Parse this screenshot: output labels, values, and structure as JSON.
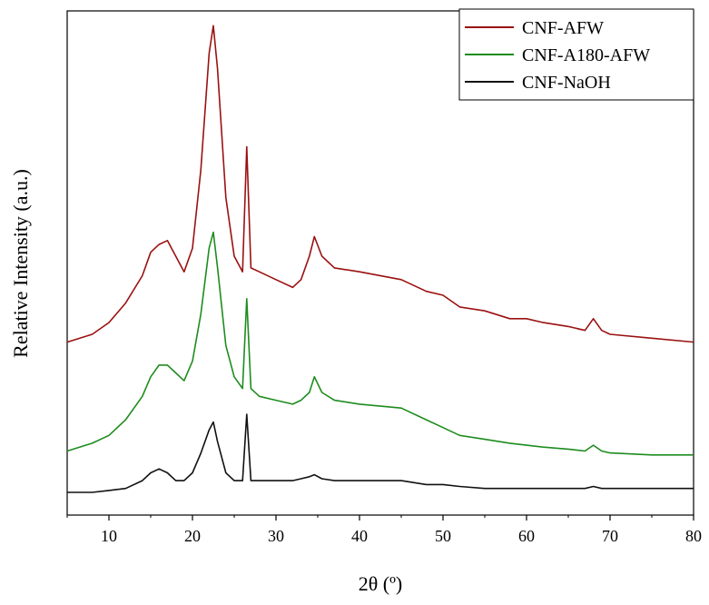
{
  "chart_data": {
    "type": "line",
    "xlabel": "2θ (º)",
    "ylabel": "Relative Intensity (a.u.)",
    "xlim": [
      5,
      80
    ],
    "xticks": [
      10,
      20,
      30,
      40,
      50,
      60,
      70,
      80
    ],
    "y_ticks_shown": false,
    "legend_position": "top-right",
    "series": [
      {
        "name": "CNF-AFW",
        "color": "#9b1111",
        "x": [
          5,
          8,
          10,
          12,
          14,
          15,
          16,
          17,
          18,
          19,
          20,
          21,
          22,
          22.5,
          23,
          24,
          25,
          26,
          26.5,
          27,
          28,
          30,
          32,
          33,
          34,
          34.6,
          35.5,
          37,
          40,
          45,
          48,
          50,
          52,
          55,
          58,
          60,
          62,
          65,
          67,
          68,
          69,
          70,
          75,
          80
        ],
        "y": [
          0.18,
          0.2,
          0.23,
          0.28,
          0.35,
          0.41,
          0.43,
          0.44,
          0.4,
          0.36,
          0.42,
          0.62,
          0.92,
          0.99,
          0.88,
          0.55,
          0.4,
          0.36,
          0.68,
          0.37,
          0.36,
          0.34,
          0.32,
          0.34,
          0.4,
          0.45,
          0.4,
          0.37,
          0.36,
          0.34,
          0.31,
          0.3,
          0.27,
          0.26,
          0.24,
          0.24,
          0.23,
          0.22,
          0.21,
          0.24,
          0.21,
          0.2,
          0.19,
          0.18
        ]
      },
      {
        "name": "CNF-A180-AFW",
        "color": "#1e8c1e",
        "x": [
          5,
          8,
          10,
          12,
          14,
          15,
          16,
          17,
          18,
          19,
          20,
          21,
          22,
          22.5,
          23,
          24,
          25,
          26,
          26.5,
          27,
          28,
          30,
          32,
          33,
          34,
          34.6,
          35.5,
          37,
          40,
          45,
          48,
          50,
          52,
          55,
          58,
          60,
          62,
          65,
          67,
          68,
          69,
          70,
          75,
          80
        ],
        "y": [
          0.05,
          0.07,
          0.09,
          0.13,
          0.19,
          0.24,
          0.27,
          0.27,
          0.25,
          0.23,
          0.28,
          0.4,
          0.57,
          0.61,
          0.52,
          0.32,
          0.24,
          0.21,
          0.44,
          0.21,
          0.19,
          0.18,
          0.17,
          0.18,
          0.2,
          0.24,
          0.2,
          0.18,
          0.17,
          0.16,
          0.13,
          0.11,
          0.09,
          0.08,
          0.07,
          0.065,
          0.06,
          0.055,
          0.05,
          0.065,
          0.05,
          0.045,
          0.04,
          0.04
        ]
      },
      {
        "name": "CNF-NaOH",
        "color": "#111111",
        "x": [
          5,
          8,
          10,
          12,
          14,
          15,
          16,
          17,
          18,
          19,
          20,
          21,
          22,
          22.5,
          23,
          24,
          25,
          26,
          26.5,
          27,
          28,
          30,
          32,
          33,
          34,
          34.6,
          35.5,
          37,
          40,
          45,
          48,
          50,
          52,
          55,
          58,
          60,
          62,
          65,
          67,
          68,
          69,
          70,
          75,
          80
        ],
        "y": [
          0.0,
          0.0,
          0.005,
          0.01,
          0.03,
          0.05,
          0.06,
          0.05,
          0.03,
          0.03,
          0.05,
          0.1,
          0.16,
          0.18,
          0.13,
          0.05,
          0.03,
          0.03,
          0.2,
          0.03,
          0.03,
          0.03,
          0.03,
          0.035,
          0.04,
          0.045,
          0.035,
          0.03,
          0.03,
          0.03,
          0.02,
          0.02,
          0.015,
          0.01,
          0.01,
          0.01,
          0.01,
          0.01,
          0.01,
          0.015,
          0.01,
          0.01,
          0.01,
          0.01
        ]
      }
    ]
  }
}
